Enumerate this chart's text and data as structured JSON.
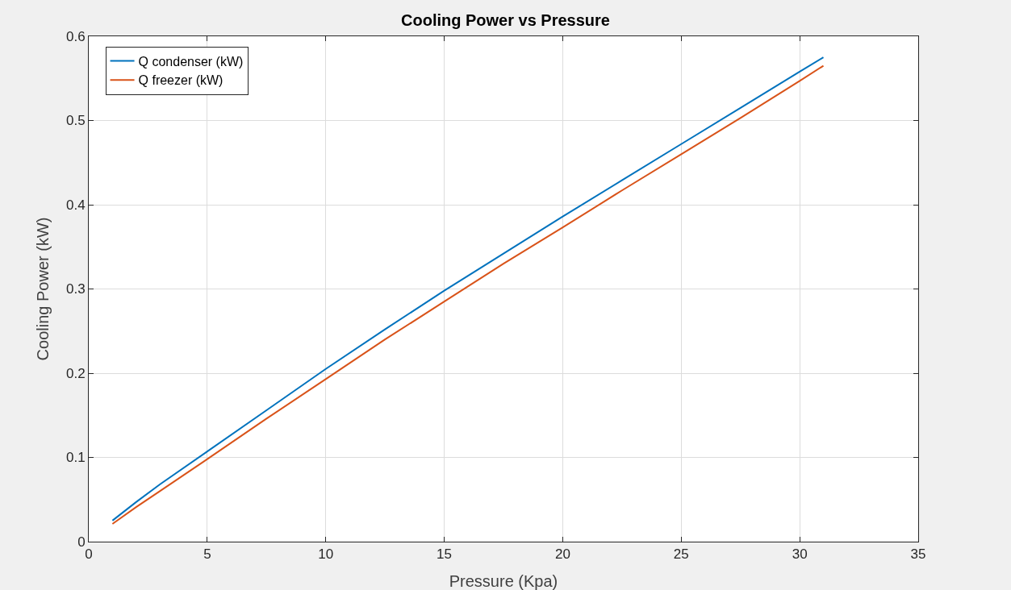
{
  "chart_data": {
    "type": "line",
    "title": "Cooling Power vs Pressure",
    "xlabel": "Pressure (Kpa)",
    "ylabel": "Cooling Power (kW)",
    "x": [
      1,
      2,
      3,
      5,
      7.5,
      10,
      12.5,
      15,
      17.5,
      20,
      22.5,
      25,
      27.5,
      30,
      31
    ],
    "series": [
      {
        "name": "Q condenser (kW)",
        "color": "#0072bd",
        "values": [
          0.025,
          0.047,
          0.068,
          0.107,
          0.156,
          0.205,
          0.252,
          0.298,
          0.342,
          0.386,
          0.429,
          0.472,
          0.515,
          0.558,
          0.575
        ]
      },
      {
        "name": "Q freezer (kW)",
        "color": "#d95319",
        "values": [
          0.021,
          0.041,
          0.06,
          0.098,
          0.146,
          0.193,
          0.24,
          0.285,
          0.33,
          0.373,
          0.417,
          0.46,
          0.503,
          0.547,
          0.565
        ]
      }
    ],
    "xlim": [
      0,
      35
    ],
    "xticks": [
      0,
      5,
      10,
      15,
      20,
      25,
      30,
      35
    ],
    "ylim": [
      0,
      0.6
    ],
    "yticks": [
      0,
      0.1,
      0.2,
      0.3,
      0.4,
      0.5,
      0.6
    ],
    "grid": true,
    "legend": "top left",
    "marker": "none",
    "line_style": "solid"
  }
}
